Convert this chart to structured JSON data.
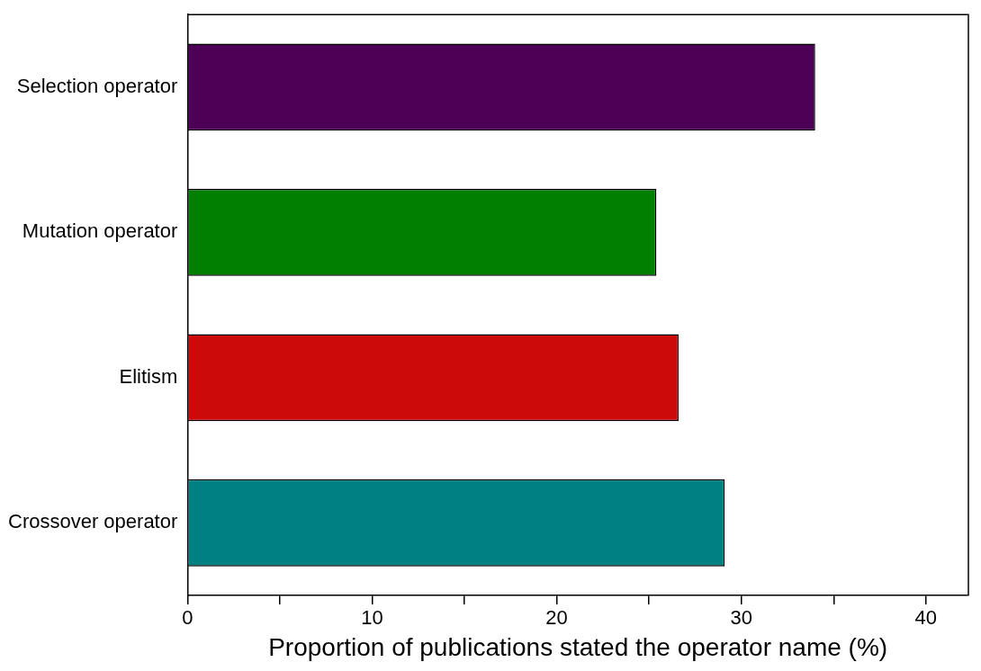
{
  "chart_data": {
    "type": "bar",
    "orientation": "horizontal",
    "xlabel": "Proportion of publications stated the operator name (%)",
    "categories": [
      "Selection operator",
      "Mutation operator",
      "Elitism",
      "Crossover operator"
    ],
    "values": [
      34.0,
      25.4,
      26.6,
      29.1
    ],
    "colors": [
      "#4b0055",
      "#007f00",
      "#cc0a0a",
      "#008080"
    ],
    "xlim": [
      0,
      42.3
    ],
    "xticks": [
      0,
      {
        "value": 5,
        "label": null
      },
      10,
      {
        "value": 15,
        "label": null
      },
      20,
      {
        "value": 25,
        "label": null
      },
      30,
      {
        "value": 35,
        "label": null
      },
      40
    ],
    "grid": false,
    "legend": false
  }
}
